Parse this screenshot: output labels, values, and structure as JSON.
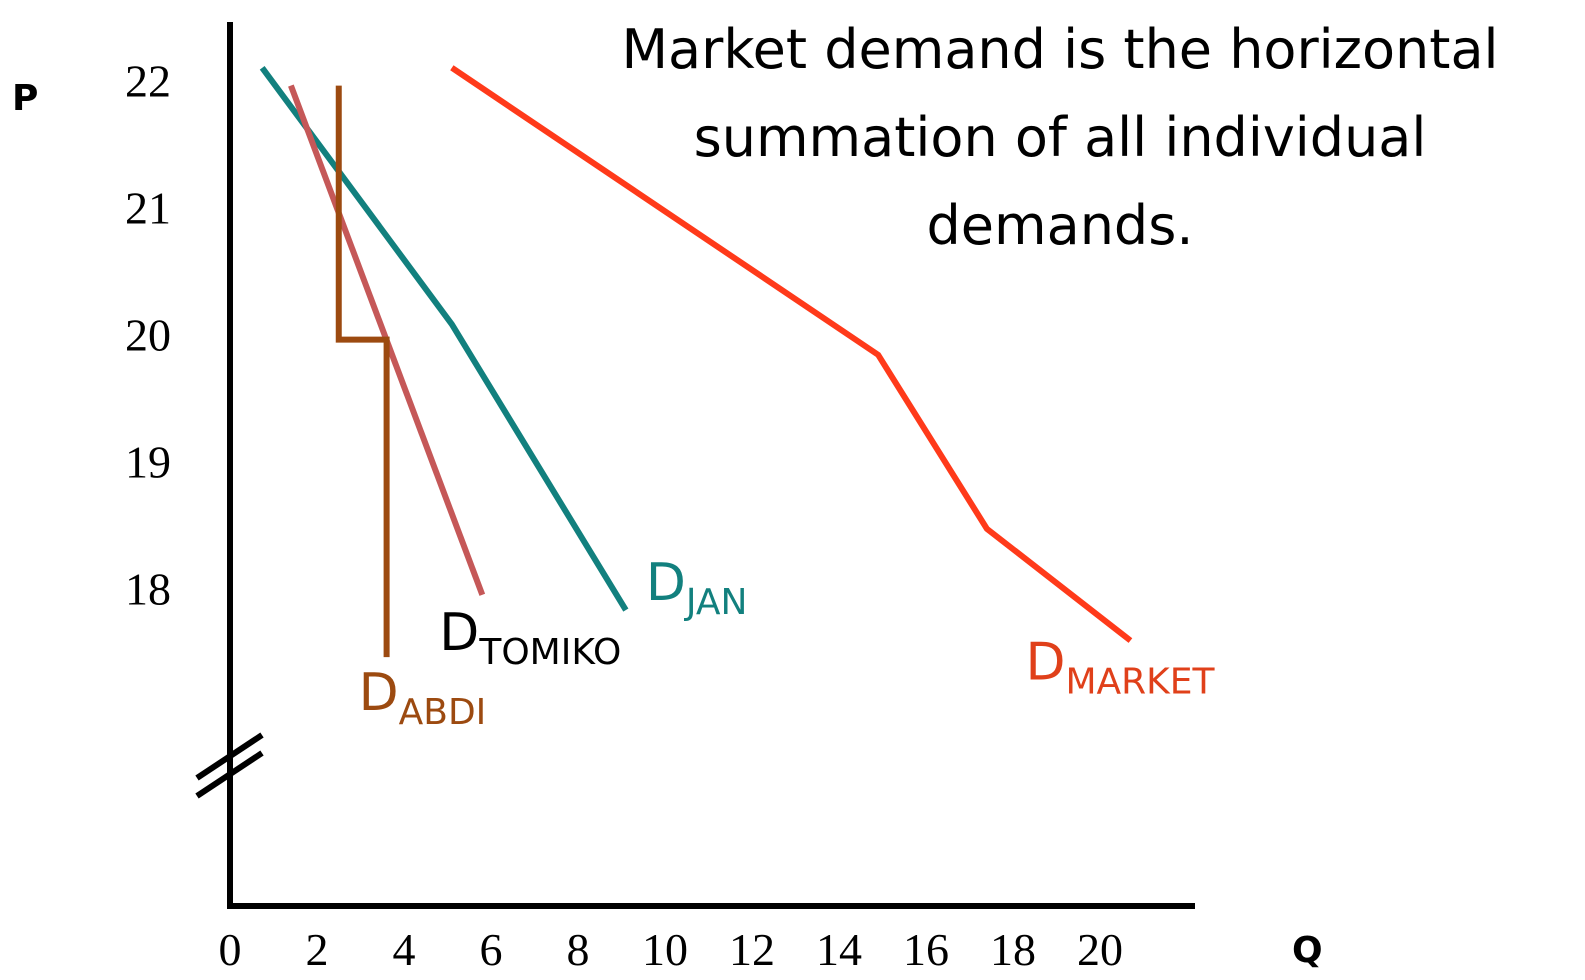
{
  "chart_data": {
    "type": "line",
    "title": "Market demand is the horizontal summation of all individual demands.",
    "x_label": "Q",
    "y_label": "P",
    "xlim": [
      0,
      22
    ],
    "ylim": [
      15.5,
      22.5
    ],
    "xticks": [
      0,
      2,
      4,
      6,
      8,
      10,
      12,
      14,
      16,
      18,
      20
    ],
    "yticks": [
      18,
      19,
      20,
      21,
      22
    ],
    "series": [
      {
        "name_main": "D",
        "name_sub": "JAN",
        "color": "#12807e",
        "label_color": "#12807e",
        "x": [
          0.74,
          5.1,
          9.1
        ],
        "values": [
          22.1,
          20.08,
          17.83
        ]
      },
      {
        "name_main": "D",
        "name_sub": "TOMIKO",
        "color": "#c55858",
        "label_color": "#000000",
        "x": [
          1.4,
          5.8
        ],
        "values": [
          21.96,
          17.95
        ]
      },
      {
        "name_main": "D",
        "name_sub": "ABDI",
        "color": "#9c4a10",
        "label_color": "#9c4a10",
        "x": [
          2.5,
          2.5,
          3.6,
          3.6
        ],
        "values": [
          21.96,
          19.96,
          19.96,
          17.46
        ]
      },
      {
        "name_main": "D",
        "name_sub": "MARKET",
        "color": "#ff3a1a",
        "label_color": "#e0401a",
        "x": [
          5.1,
          14.9,
          17.4,
          20.7
        ],
        "values": [
          22.1,
          19.84,
          18.47,
          17.59
        ]
      }
    ]
  }
}
